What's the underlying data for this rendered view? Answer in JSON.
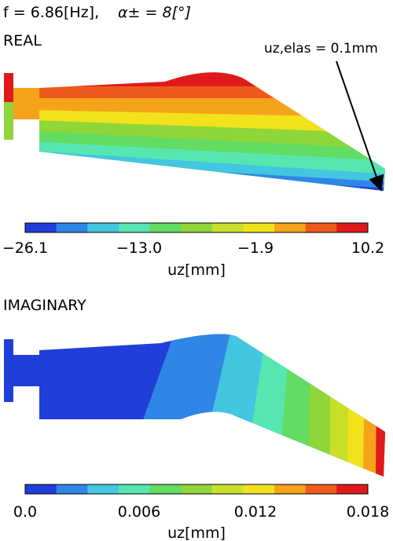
{
  "header": {
    "frequency": "f = 6.86[Hz],",
    "angle": "α± = 8[°]"
  },
  "real_panel": {
    "title": "REAL",
    "annotation": "uz,elas = 0.1mm",
    "colorbar": {
      "ticks": [
        "−26.1",
        "−13.0",
        "−1.9",
        "10.2"
      ],
      "label": "uz[mm]",
      "colors": [
        "#1f3fd8",
        "#2f86e6",
        "#43c6e0",
        "#58e6b0",
        "#62dc62",
        "#8fd63a",
        "#c9e02a",
        "#f2e21c",
        "#f5a31b",
        "#ee5a1c",
        "#e01a1a"
      ]
    }
  },
  "imag_panel": {
    "title": "IMAGINARY",
    "colorbar": {
      "ticks": [
        "0.0",
        "0.006",
        "0.012",
        "0.018"
      ],
      "label": "uz[mm]",
      "colors": [
        "#1f3fd8",
        "#2f86e6",
        "#43c6e0",
        "#58e6b0",
        "#62dc62",
        "#8fd63a",
        "#c9e02a",
        "#f2e21c",
        "#f5a31b",
        "#ee5a1c",
        "#e01a1a"
      ]
    }
  }
}
